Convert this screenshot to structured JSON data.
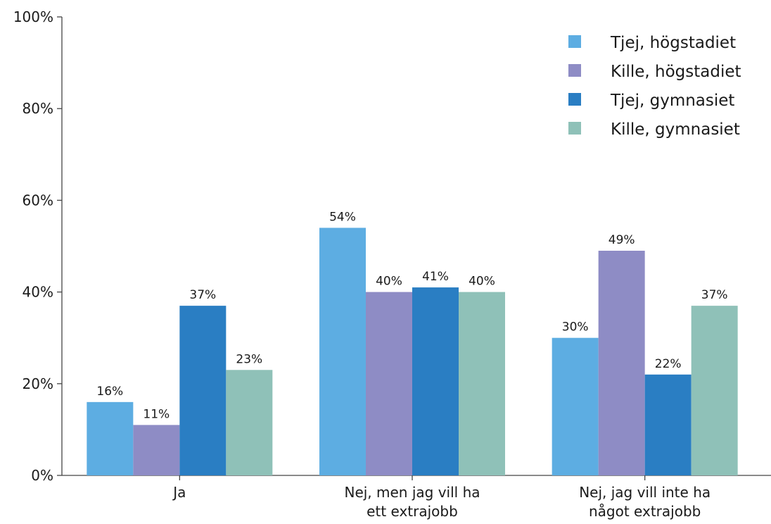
{
  "chart_data": {
    "type": "bar",
    "categories": [
      [
        "Ja"
      ],
      [
        "Nej, men jag vill ha",
        "ett extrajobb"
      ],
      [
        "Nej, jag vill inte ha",
        "något extrajobb"
      ]
    ],
    "series": [
      {
        "name": "Tjej, högstadiet",
        "color": "#5dade2",
        "values": [
          16,
          54,
          30
        ],
        "labels": [
          "16%",
          "54%",
          "30%"
        ]
      },
      {
        "name": "Kille, högstadiet",
        "color": "#8e8cc5",
        "values": [
          11,
          40,
          49
        ],
        "labels": [
          "11%",
          "40%",
          "49%"
        ]
      },
      {
        "name": "Tjej, gymnasiet",
        "color": "#2a7ec3",
        "values": [
          37,
          41,
          22
        ],
        "labels": [
          "37%",
          "41%",
          "22%"
        ]
      },
      {
        "name": "Kille, gymnasiet",
        "color": "#8fc1b8",
        "values": [
          23,
          40,
          37
        ],
        "labels": [
          "23%",
          "40%",
          "37%"
        ]
      }
    ],
    "ylim": [
      0,
      100
    ],
    "yticks": [
      0,
      20,
      40,
      60,
      80,
      100
    ],
    "ytick_labels": [
      "0%",
      "20%",
      "40%",
      "60%",
      "80%",
      "100%"
    ],
    "xlabel": "",
    "ylabel": "",
    "title": "",
    "legend_position": "top-right",
    "grid": false
  }
}
